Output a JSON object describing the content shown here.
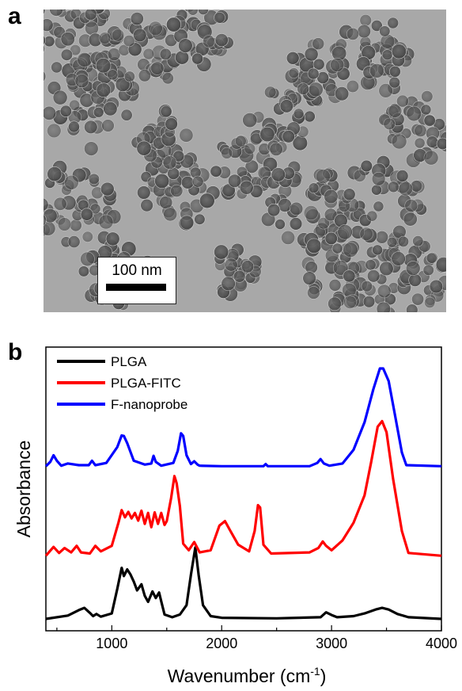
{
  "panel_a": {
    "label": "a",
    "scale_bar_text": "100 nm"
  },
  "panel_b": {
    "label": "b"
  },
  "chart_data": {
    "type": "line",
    "xlabel": "Wavenumber (cm⁻¹)",
    "ylabel": "Absorbance",
    "xlim": [
      400,
      4000
    ],
    "xticks": [
      1000,
      2000,
      3000,
      4000
    ],
    "y_ticks_shown": false,
    "legend_position": "top-left",
    "series": [
      {
        "name": "PLGA",
        "color": "#000000",
        "offset": 0,
        "x": [
          400,
          600,
          700,
          750,
          800,
          830,
          860,
          900,
          1000,
          1050,
          1090,
          1110,
          1140,
          1170,
          1200,
          1230,
          1270,
          1300,
          1330,
          1370,
          1400,
          1430,
          1450,
          1480,
          1550,
          1620,
          1680,
          1720,
          1760,
          1790,
          1830,
          1900,
          2000,
          2500,
          2900,
          2950,
          3000,
          3050,
          3200,
          3300,
          3400,
          3460,
          3520,
          3600,
          3700,
          4000
        ],
        "y": [
          0,
          0.6,
          1.6,
          2.0,
          1.1,
          0.5,
          0.9,
          0.4,
          1.0,
          5.5,
          9.3,
          7.8,
          9.0,
          8.1,
          6.8,
          5.2,
          6.3,
          4.2,
          3.1,
          5.0,
          3.8,
          4.8,
          3.2,
          0.8,
          0.3,
          0.8,
          2.5,
          8.0,
          13.0,
          8.0,
          2.5,
          0.5,
          0.2,
          0.1,
          0.3,
          1.2,
          0.7,
          0.3,
          0.5,
          1.0,
          1.7,
          2.0,
          1.7,
          0.9,
          0.3,
          0
        ]
      },
      {
        "name": "PLGA-FITC",
        "color": "#ff0000",
        "offset": 11.5,
        "x": [
          400,
          470,
          520,
          570,
          630,
          680,
          720,
          800,
          850,
          900,
          1000,
          1060,
          1090,
          1120,
          1150,
          1180,
          1210,
          1240,
          1270,
          1300,
          1330,
          1360,
          1390,
          1420,
          1450,
          1480,
          1500,
          1540,
          1570,
          1590,
          1620,
          1650,
          1700,
          1750,
          1800,
          1900,
          1980,
          2030,
          2080,
          2150,
          2250,
          2300,
          2330,
          2350,
          2380,
          2450,
          2800,
          2880,
          2920,
          2950,
          3000,
          3100,
          3200,
          3300,
          3360,
          3420,
          3460,
          3500,
          3560,
          3640,
          3700,
          4000
        ],
        "y": [
          0,
          1.6,
          0.5,
          1.4,
          0.6,
          1.8,
          0.6,
          0.4,
          1.8,
          0.8,
          1.8,
          6.0,
          8.3,
          7.0,
          8.0,
          6.8,
          7.8,
          6.4,
          8.2,
          5.8,
          7.8,
          5.2,
          7.9,
          5.8,
          7.8,
          5.6,
          6.3,
          10.5,
          14.5,
          13.2,
          9.0,
          2.2,
          1.0,
          2.5,
          0.6,
          1.0,
          5.5,
          6.3,
          4.5,
          2.0,
          0.8,
          4.5,
          9.2,
          8.8,
          2.0,
          0.4,
          0.6,
          1.4,
          2.6,
          1.8,
          1.0,
          2.8,
          6.0,
          11.0,
          17.0,
          23.5,
          24.5,
          22.5,
          14.0,
          4.5,
          0.5,
          0
        ]
      },
      {
        "name": "F-nanoprobe",
        "color": "#0000ff",
        "offset": 27.8,
        "x": [
          400,
          440,
          470,
          500,
          540,
          600,
          700,
          790,
          820,
          850,
          950,
          1050,
          1090,
          1110,
          1140,
          1200,
          1300,
          1360,
          1380,
          1400,
          1450,
          1560,
          1600,
          1630,
          1650,
          1680,
          1720,
          1750,
          1780,
          1800,
          2000,
          2380,
          2400,
          2420,
          2800,
          2870,
          2900,
          2930,
          2980,
          3100,
          3200,
          3300,
          3380,
          3440,
          3470,
          3520,
          3580,
          3640,
          3680,
          4000
        ],
        "y": [
          0,
          0.8,
          2.0,
          1.0,
          0.1,
          0.5,
          0.2,
          0.2,
          1.0,
          0.2,
          0.6,
          3.5,
          5.6,
          5.5,
          4.2,
          1.0,
          0.3,
          0.5,
          1.9,
          0.8,
          0.1,
          0.6,
          2.8,
          6.0,
          5.5,
          2.0,
          0.4,
          0.9,
          0.3,
          0.1,
          0,
          0,
          0.4,
          0,
          0,
          0.6,
          1.3,
          0.5,
          0.1,
          0.5,
          3.0,
          8.0,
          14.0,
          17.8,
          17.8,
          15.5,
          9.0,
          2.5,
          0.2,
          0
        ]
      }
    ]
  }
}
